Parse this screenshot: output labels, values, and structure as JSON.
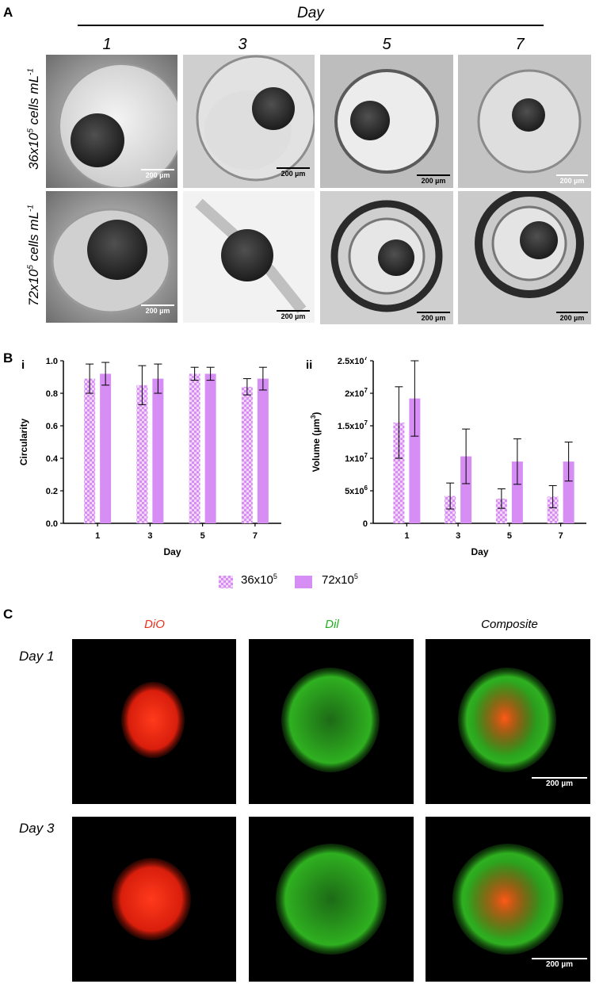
{
  "panel_a": {
    "letter": "A",
    "header": "Day",
    "day_labels": [
      "1",
      "3",
      "5",
      "7"
    ],
    "row_labels": [
      "36x10",
      "72x10"
    ],
    "row_label_sup": "5",
    "row_label_suffix": " cells mL",
    "row_label_suffix_sup": "-1",
    "scale_text": "200 µm"
  },
  "panel_b": {
    "letter": "B",
    "sub_i": "i",
    "sub_ii": "ii",
    "legend": [
      {
        "base": "36x10",
        "sup": "5",
        "pattern": "checker"
      },
      {
        "base": "72x10",
        "sup": "5",
        "pattern": "solid"
      }
    ],
    "colors": {
      "bar": "#d68ef5",
      "checker_light": "#f5dcfc"
    }
  },
  "chart_data": [
    {
      "type": "bar",
      "categories": [
        "1",
        "3",
        "5",
        "7"
      ],
      "xlabel": "Day",
      "ylabel": "Circularity",
      "ylim": [
        0,
        1.0
      ],
      "yticks": [
        "0.0",
        "0.2",
        "0.4",
        "0.6",
        "0.8",
        "1.0"
      ],
      "series": [
        {
          "name": "36x10^5",
          "values": [
            0.89,
            0.85,
            0.92,
            0.84
          ],
          "errors": [
            0.09,
            0.12,
            0.04,
            0.05
          ]
        },
        {
          "name": "72x10^5",
          "values": [
            0.92,
            0.89,
            0.92,
            0.89
          ],
          "errors": [
            0.07,
            0.09,
            0.04,
            0.07
          ]
        }
      ]
    },
    {
      "type": "bar",
      "categories": [
        "1",
        "3",
        "5",
        "7"
      ],
      "xlabel": "Day",
      "ylabel": "Volume (µm",
      "ylabel_sup": "3",
      "ylabel_end": ")",
      "ylim": [
        0,
        25000000
      ],
      "yticks": [
        {
          "v": 0,
          "base": "0",
          "sup": ""
        },
        {
          "v": 5000000,
          "base": "5x10",
          "sup": "6"
        },
        {
          "v": 10000000,
          "base": "1x10",
          "sup": "7"
        },
        {
          "v": 15000000,
          "base": "1.5x10",
          "sup": "7"
        },
        {
          "v": 20000000,
          "base": "2x10",
          "sup": "7"
        },
        {
          "v": 25000000,
          "base": "2.5x10",
          "sup": "7"
        }
      ],
      "series": [
        {
          "name": "36x10^5",
          "values": [
            15500000,
            4200000,
            3800000,
            4100000
          ],
          "errors": [
            5500000,
            2000000,
            1500000,
            1700000
          ]
        },
        {
          "name": "72x10^5",
          "values": [
            19200000,
            10300000,
            9500000,
            9500000
          ],
          "errors": [
            5800000,
            4200000,
            3500000,
            3000000
          ]
        }
      ]
    }
  ],
  "panel_c": {
    "letter": "C",
    "col_labels": [
      {
        "text": "DiO",
        "color": "#e8321e"
      },
      {
        "text": "Dil",
        "color": "#22b01e"
      },
      {
        "text": "Composite",
        "color": "#111111"
      }
    ],
    "row_labels": [
      "Day 1",
      "Day 3"
    ],
    "scale_text": "200 µm"
  }
}
